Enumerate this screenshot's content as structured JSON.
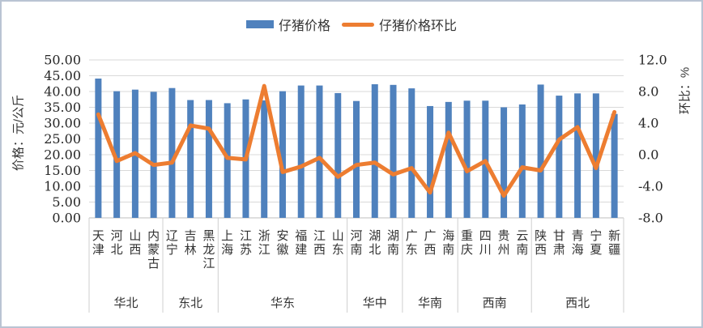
{
  "chart_data": {
    "type": "bar+line",
    "title": "",
    "categories": [
      "天津",
      "河北",
      "山西",
      "内蒙古",
      "辽宁",
      "吉林",
      "黑龙江",
      "上海",
      "江苏",
      "浙江",
      "安徽",
      "福建",
      "江西",
      "山东",
      "河南",
      "湖北",
      "湖南",
      "广东",
      "广西",
      "海南",
      "重庆",
      "四川",
      "贵州",
      "云南",
      "陕西",
      "甘肃",
      "青海",
      "宁夏",
      "新疆"
    ],
    "groups": [
      {
        "label": "华北",
        "count": 4
      },
      {
        "label": "东北",
        "count": 3
      },
      {
        "label": "华东",
        "count": 7
      },
      {
        "label": "华中",
        "count": 3
      },
      {
        "label": "华南",
        "count": 3
      },
      {
        "label": "西南",
        "count": 4
      },
      {
        "label": "西北",
        "count": 5
      }
    ],
    "series": [
      {
        "name": "仔猪价格",
        "type": "bar",
        "axis": "left",
        "color": "#4F81BD",
        "values": [
          44.1,
          40.1,
          40.6,
          39.9,
          41.1,
          37.3,
          37.3,
          36.3,
          37.5,
          37.2,
          40.1,
          41.9,
          41.9,
          39.5,
          37.0,
          42.3,
          42.1,
          41.0,
          35.4,
          36.7,
          37.1,
          37.1,
          35.0,
          35.9,
          42.2,
          38.7,
          39.4,
          39.4,
          32.9
        ]
      },
      {
        "name": "仔猪价格环比",
        "type": "line",
        "axis": "right",
        "color": "#ED7D31",
        "values": [
          5.1,
          -0.8,
          0.2,
          -1.3,
          -1.0,
          3.7,
          3.3,
          -0.4,
          -0.6,
          8.7,
          -2.2,
          -1.5,
          -0.4,
          -2.8,
          -1.3,
          -1.0,
          -2.5,
          -1.7,
          -4.8,
          2.8,
          -2.1,
          -0.8,
          -5.2,
          -1.6,
          -2.0,
          1.9,
          3.5,
          -1.7,
          5.4
        ]
      }
    ],
    "left_axis": {
      "title": "价格：元/公斤",
      "min": 0,
      "max": 50,
      "step": 5,
      "tick_labels": [
        "50.00",
        "45.00",
        "40.00",
        "35.00",
        "30.00",
        "25.00",
        "20.00",
        "15.00",
        "10.00",
        "5.00",
        "0.00"
      ]
    },
    "right_axis": {
      "title": "环比：%",
      "min": -8,
      "max": 12,
      "step": 4,
      "tick_labels": [
        "12.0",
        "8.0",
        "4.0",
        "0.0",
        "-4.0",
        "-8.0"
      ],
      "negative_tick_color": "#FF0000"
    },
    "grid": true,
    "grid_color": "#D9D9D9",
    "legend_position": "top"
  }
}
